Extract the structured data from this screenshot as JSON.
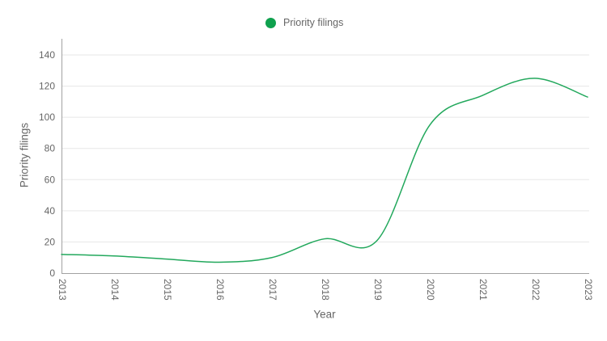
{
  "legend": {
    "label": "Priority filings"
  },
  "colors": {
    "line": "#22a85c",
    "legend_dot": "#0fa14e",
    "grid": "#e7e7e7",
    "axis": "#a2a2a2",
    "text": "#666666"
  },
  "chart_data": {
    "type": "line",
    "x": [
      2013,
      2014,
      2015,
      2016,
      2017,
      2018,
      2019,
      2020,
      2021,
      2022,
      2023
    ],
    "series": [
      {
        "name": "Priority filings",
        "values": [
          12,
          11,
          9,
          7,
          10,
          22,
          21,
          95,
          114,
          125,
          113
        ]
      }
    ],
    "xlabel": "Year",
    "ylabel": "Priority filings",
    "ylim": [
      0,
      150
    ],
    "yticks": [
      0,
      20,
      40,
      60,
      80,
      100,
      120,
      140
    ],
    "grid": true,
    "legend_position": "top-center",
    "line_shape": "spline"
  }
}
